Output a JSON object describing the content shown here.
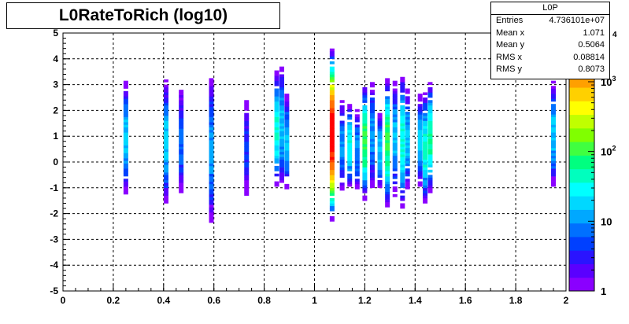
{
  "title": "L0RateToRich (log10)",
  "stats": {
    "header": "L0P",
    "rows": [
      {
        "label": "Entries",
        "value": "4.736101e+07"
      },
      {
        "label": "Mean x",
        "value": "1.071"
      },
      {
        "label": "Mean y",
        "value": "0.5064"
      },
      {
        "label": "RMS x",
        "value": "0.08814"
      },
      {
        "label": "RMS y",
        "value": "0.8073"
      }
    ]
  },
  "chart_data": {
    "type": "heatmap",
    "title": "L0RateToRich (log10)",
    "xlim": [
      0,
      2
    ],
    "ylim": [
      -5,
      5
    ],
    "x_ticks": [
      "0",
      "0.2",
      "0.4",
      "0.6",
      "0.8",
      "1",
      "1.2",
      "1.4",
      "1.6",
      "1.8",
      "2"
    ],
    "y_ticks": [
      "-5",
      "-4",
      "-3",
      "-2",
      "-1",
      "0",
      "1",
      "2",
      "3",
      "4",
      "5"
    ],
    "grid": true,
    "colorbar": {
      "scale": "log",
      "range": [
        1,
        5000
      ],
      "tick_labels": [
        {
          "base": "1",
          "exp": ""
        },
        {
          "base": "10",
          "exp": ""
        },
        {
          "base": "10",
          "exp": "2"
        },
        {
          "base": "10",
          "exp": "3"
        }
      ],
      "top_label": "4",
      "colors": [
        "#8a00ff",
        "#5a00ff",
        "#2a14ff",
        "#0040ff",
        "#0070ff",
        "#00a8ff",
        "#00d8ff",
        "#00ffff",
        "#00ffbe",
        "#00ff80",
        "#40ff40",
        "#80ff00",
        "#c0ff00",
        "#ffff00",
        "#ffd000",
        "#ffa000",
        "#ff7000",
        "#ff4000",
        "#ff0000"
      ]
    },
    "columns": [
      {
        "x": 0.25,
        "ymin": -1.25,
        "ymax": 3.1,
        "peak": 0.35
      },
      {
        "x": 0.41,
        "ymin": -1.6,
        "ymax": 3.2,
        "peak": 0.35
      },
      {
        "x": 0.47,
        "ymin": -1.2,
        "ymax": 2.8,
        "peak": 0.25
      },
      {
        "x": 0.59,
        "ymin": -2.35,
        "ymax": 3.25,
        "peak": 0.3
      },
      {
        "x": 0.73,
        "ymin": -1.3,
        "ymax": 2.4,
        "peak": 0.2
      },
      {
        "x": 0.85,
        "ymin": -0.95,
        "ymax": 3.5,
        "peak": 0.45
      },
      {
        "x": 0.87,
        "ymin": -0.9,
        "ymax": 3.65,
        "peak": 0.35
      },
      {
        "x": 0.89,
        "ymin": -1.05,
        "ymax": 2.6,
        "peak": 0.35
      },
      {
        "x": 1.07,
        "ymin": -2.3,
        "ymax": 4.4,
        "peak": 1.0
      },
      {
        "x": 1.11,
        "ymin": -1.1,
        "ymax": 2.35,
        "peak": 0.3
      },
      {
        "x": 1.14,
        "ymin": -0.95,
        "ymax": 2.25,
        "peak": 0.45
      },
      {
        "x": 1.17,
        "ymin": -1.05,
        "ymax": 2.05,
        "peak": 0.3
      },
      {
        "x": 1.2,
        "ymin": -1.5,
        "ymax": 3.0,
        "peak": 0.55
      },
      {
        "x": 1.23,
        "ymin": -1.0,
        "ymax": 3.1,
        "peak": 0.3
      },
      {
        "x": 1.26,
        "ymin": -1.1,
        "ymax": 1.9,
        "peak": 0.35
      },
      {
        "x": 1.29,
        "ymin": -1.75,
        "ymax": 3.25,
        "peak": 0.55
      },
      {
        "x": 1.32,
        "ymin": -1.35,
        "ymax": 3.1,
        "peak": 0.35
      },
      {
        "x": 1.35,
        "ymin": -1.8,
        "ymax": 3.4,
        "peak": 0.45
      },
      {
        "x": 1.37,
        "ymin": -1.05,
        "ymax": 2.8,
        "peak": 0.35
      },
      {
        "x": 1.42,
        "ymin": -0.95,
        "ymax": 2.6,
        "peak": 0.35
      },
      {
        "x": 1.44,
        "ymin": -1.6,
        "ymax": 2.65,
        "peak": 0.45
      },
      {
        "x": 1.46,
        "ymin": -1.2,
        "ymax": 3.1,
        "peak": 0.5
      },
      {
        "x": 1.95,
        "ymin": -0.95,
        "ymax": 3.1,
        "peak": 0.35
      }
    ]
  }
}
